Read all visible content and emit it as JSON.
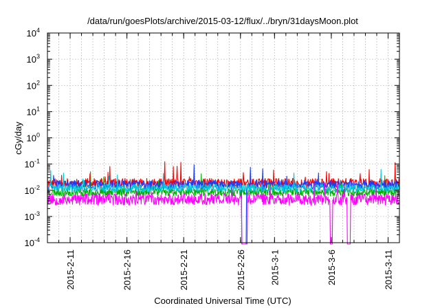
{
  "chart_data": {
    "type": "line",
    "title": "/data/run/goesPlots/archive/2015-03-12/flux/../bryn/31daysMoon.plot",
    "xlabel": "Coordinated Universal Time (UTC)",
    "ylabel": "cGy/day",
    "yscale": "log",
    "ylim": [
      0.0001,
      10000
    ],
    "xlim_days": [
      0,
      31
    ],
    "x_start_date": "2015-02-09",
    "grid": true,
    "y_ticks": [
      {
        "base": "10",
        "exp": "-4",
        "value": 0.0001
      },
      {
        "base": "10",
        "exp": "-3",
        "value": 0.001
      },
      {
        "base": "10",
        "exp": "-2",
        "value": 0.01
      },
      {
        "base": "10",
        "exp": "-1",
        "value": 0.1
      },
      {
        "base": "10",
        "exp": "0",
        "value": 1
      },
      {
        "base": "10",
        "exp": "1",
        "value": 10
      },
      {
        "base": "10",
        "exp": "2",
        "value": 100
      },
      {
        "base": "10",
        "exp": "3",
        "value": 1000
      },
      {
        "base": "10",
        "exp": "4",
        "value": 10000
      }
    ],
    "x_ticks": [
      {
        "label": "2015-2-11",
        "day": 2
      },
      {
        "label": "2015-2-16",
        "day": 7
      },
      {
        "label": "2015-2-21",
        "day": 12
      },
      {
        "label": "2015-2-26",
        "day": 17
      },
      {
        "label": "2015-3-1",
        "day": 20
      },
      {
        "label": "2015-3-6",
        "day": 25
      },
      {
        "label": "2015-3-11",
        "day": 30
      }
    ],
    "x_minor_grid_days": [
      0,
      1,
      2,
      3,
      4,
      5,
      6,
      7,
      8,
      9,
      10,
      11,
      12,
      13,
      14,
      15,
      16,
      17,
      18,
      19,
      20,
      21,
      22,
      23,
      24,
      25,
      26,
      27,
      28,
      29,
      30,
      31
    ],
    "series": [
      {
        "name": "red",
        "color": "#ff0000",
        "base": 0.019,
        "amp": 0.35,
        "seed": 11,
        "dropouts": []
      },
      {
        "name": "green",
        "color": "#00b000",
        "base": 0.0085,
        "amp": 0.3,
        "seed": 23,
        "dropouts": []
      },
      {
        "name": "blue",
        "color": "#1a3cff",
        "base": 0.016,
        "amp": 0.35,
        "seed": 37,
        "dropouts": [
          [
            17.1,
            17.5
          ]
        ]
      },
      {
        "name": "cyan",
        "color": "#00c8d8",
        "base": 0.012,
        "amp": 0.3,
        "seed": 41,
        "dropouts": []
      },
      {
        "name": "magenta",
        "color": "#ff00ff",
        "base": 0.0045,
        "amp": 0.45,
        "seed": 53,
        "dropouts": [
          [
            17.1,
            17.6
          ],
          [
            24.9,
            25.1
          ],
          [
            26.4,
            26.7
          ]
        ]
      }
    ]
  }
}
